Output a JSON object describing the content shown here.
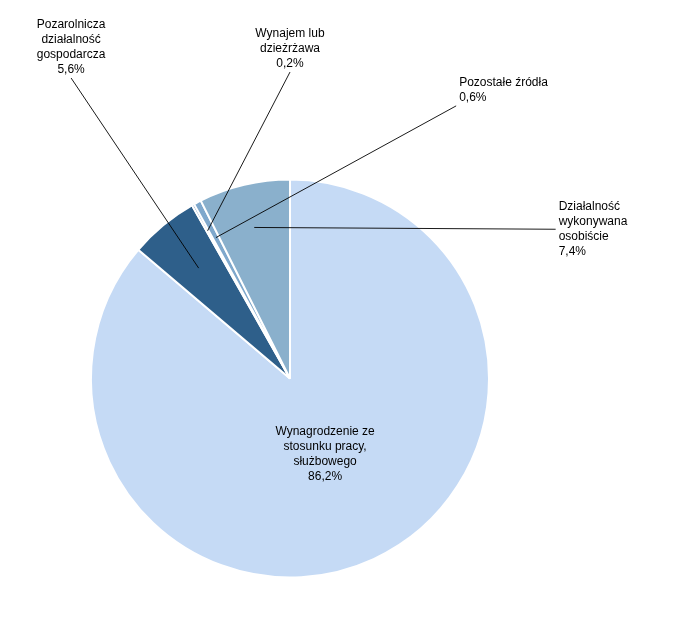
{
  "chart_data": {
    "type": "pie",
    "categories": [
      "Wynagrodzenie ze\nstosunku pracy,\nsłużbowego",
      "Pozarolnicza\ndziałalność\ngospodarcza",
      "Wynajem lub\ndzieżrżawa",
      "Pozostałe źródła",
      "Działalność\nwykonywana\nosobiście"
    ],
    "values": [
      86.2,
      5.6,
      0.2,
      0.6,
      7.4
    ],
    "value_labels": [
      "86,2%",
      "5,6%",
      "0,2%",
      "0,6%",
      "7,4%"
    ],
    "colors": [
      "#c5daf5",
      "#2e5f8a",
      "#6e93bb",
      "#7fa8cc",
      "#8ab0cc"
    ],
    "data_labels": true
  }
}
